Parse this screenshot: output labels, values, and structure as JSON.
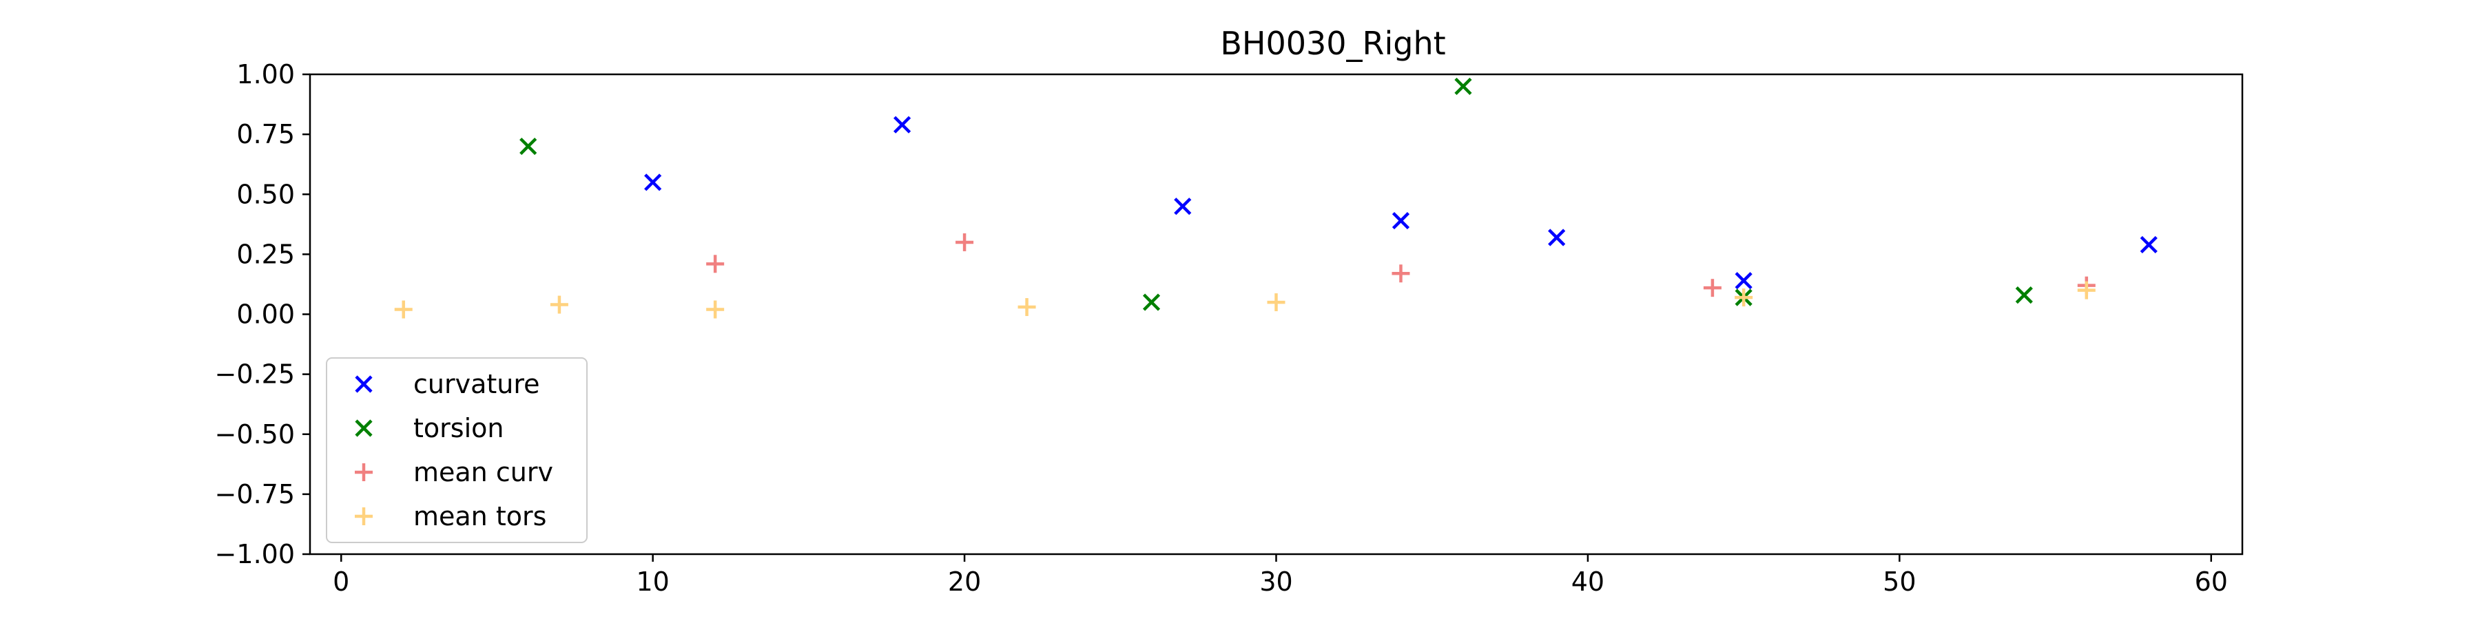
{
  "chart_data": {
    "type": "scatter",
    "title": "BH0030_Right",
    "xlabel": "",
    "ylabel": "",
    "xlim": [
      -1,
      61
    ],
    "ylim": [
      -1.0,
      1.0
    ],
    "xticks": [
      "0",
      "10",
      "20",
      "30",
      "40",
      "50",
      "60"
    ],
    "xtick_values": [
      0,
      10,
      20,
      30,
      40,
      50,
      60
    ],
    "yticks": [
      "1.00",
      "0.75",
      "0.50",
      "0.25",
      "0.00",
      "−0.25",
      "−0.50",
      "−0.75",
      "−1.00"
    ],
    "ytick_values": [
      1.0,
      0.75,
      0.5,
      0.25,
      0.0,
      -0.25,
      -0.5,
      -0.75,
      -1.0
    ],
    "grid": false,
    "legend_position": "lower-left",
    "series": [
      {
        "name": "curvature",
        "marker": "x",
        "color": "#0000ff",
        "x": [
          10,
          18,
          27,
          34,
          39,
          45,
          58
        ],
        "y": [
          0.55,
          0.79,
          0.45,
          0.39,
          0.32,
          0.14,
          0.29
        ]
      },
      {
        "name": "torsion",
        "marker": "x",
        "color": "#008000",
        "x": [
          6,
          26,
          36,
          45,
          54
        ],
        "y": [
          0.7,
          0.05,
          0.95,
          0.07,
          0.08
        ]
      },
      {
        "name": "mean curv",
        "marker": "+",
        "color": "#f08080",
        "x": [
          12,
          20,
          34,
          44,
          56
        ],
        "y": [
          0.21,
          0.3,
          0.17,
          0.11,
          0.12
        ]
      },
      {
        "name": "mean tors",
        "marker": "+",
        "color": "#ffd27f",
        "x": [
          2,
          7,
          12,
          22,
          30,
          45,
          56
        ],
        "y": [
          0.02,
          0.04,
          0.02,
          0.03,
          0.05,
          0.07,
          0.1
        ]
      }
    ]
  }
}
